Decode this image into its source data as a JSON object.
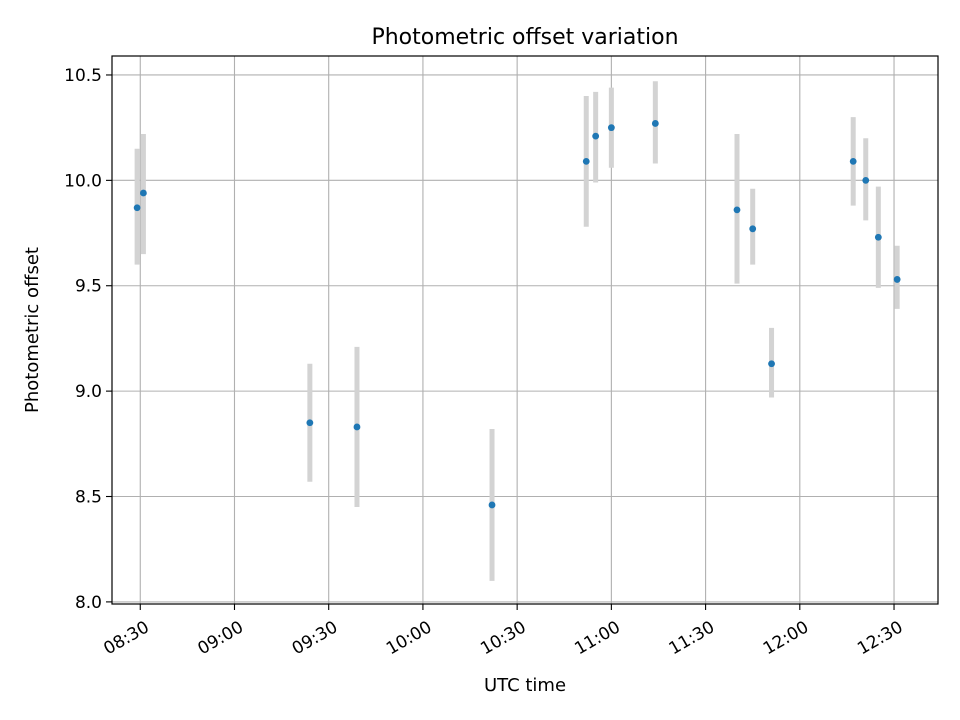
{
  "chart_data": {
    "type": "scatter",
    "title": "Photometric offset variation",
    "xlabel": "UTC time",
    "ylabel": "Photometric offset",
    "xlim": [
      "08:21",
      "12:44"
    ],
    "ylim": [
      7.99,
      10.59
    ],
    "x_ticks": [
      "08:30",
      "09:00",
      "09:30",
      "10:00",
      "10:30",
      "11:00",
      "11:30",
      "12:00",
      "12:30"
    ],
    "y_ticks": [
      "8.0",
      "8.5",
      "9.0",
      "9.5",
      "10.0",
      "10.5"
    ],
    "grid": true,
    "point_color": "#1f77b4",
    "errorbar_color": "#d3d3d3",
    "points": [
      {
        "time": "08:29",
        "y": 9.87,
        "low": 9.6,
        "high": 10.15
      },
      {
        "time": "08:31",
        "y": 9.94,
        "low": 9.65,
        "high": 10.22
      },
      {
        "time": "09:24",
        "y": 8.85,
        "low": 8.57,
        "high": 9.13
      },
      {
        "time": "09:39",
        "y": 8.83,
        "low": 8.45,
        "high": 9.21
      },
      {
        "time": "10:22",
        "y": 8.46,
        "low": 8.1,
        "high": 8.82
      },
      {
        "time": "10:52",
        "y": 10.09,
        "low": 9.78,
        "high": 10.4
      },
      {
        "time": "10:55",
        "y": 10.21,
        "low": 9.99,
        "high": 10.42
      },
      {
        "time": "11:00",
        "y": 10.25,
        "low": 10.06,
        "high": 10.44
      },
      {
        "time": "11:14",
        "y": 10.27,
        "low": 10.08,
        "high": 10.47
      },
      {
        "time": "11:40",
        "y": 9.86,
        "low": 9.51,
        "high": 10.22
      },
      {
        "time": "11:45",
        "y": 9.77,
        "low": 9.6,
        "high": 9.96
      },
      {
        "time": "11:51",
        "y": 9.13,
        "low": 8.97,
        "high": 9.3
      },
      {
        "time": "12:17",
        "y": 10.09,
        "low": 9.88,
        "high": 10.3
      },
      {
        "time": "12:21",
        "y": 10.0,
        "low": 9.81,
        "high": 10.2
      },
      {
        "time": "12:25",
        "y": 9.73,
        "low": 9.49,
        "high": 9.97
      },
      {
        "time": "12:31",
        "y": 9.53,
        "low": 9.39,
        "high": 9.69
      }
    ]
  }
}
